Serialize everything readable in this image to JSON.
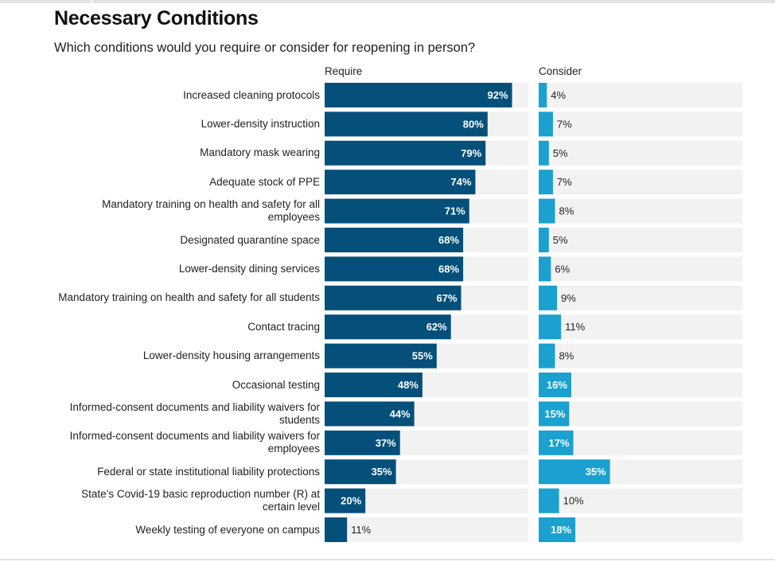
{
  "header": {
    "title": "Necessary Conditions",
    "subtitle": "Which conditions would you require or consider for reopening in person?"
  },
  "colors": {
    "require": "#04507a",
    "consider": "#1aa1cf",
    "track": "#f2f2f2",
    "inside_label": "#ffffff",
    "outside_label": "#222222"
  },
  "chart_data": {
    "type": "bar",
    "orientation": "horizontal",
    "title": "Necessary Conditions",
    "subtitle": "Which conditions would you require or consider for reopening in person?",
    "value_suffix": "%",
    "xlim": [
      0,
      100
    ],
    "grid": false,
    "categories": [
      "Increased cleaning protocols",
      "Lower-density instruction",
      "Mandatory mask wearing",
      "Adequate stock of PPE",
      "Mandatory training on health and safety for all employees",
      "Designated quarantine space",
      "Lower-density dining services",
      "Mandatory training on health and safety for all students",
      "Contact tracing",
      "Lower-density housing arrangements",
      "Occasional testing",
      "Informed-consent documents and liability waivers for students",
      "Informed-consent documents and liability waivers for employees",
      "Federal or state institutional liability protections",
      "State’s Covid-19 basic reproduction number (R) at certain level",
      "Weekly testing of everyone on campus"
    ],
    "series": [
      {
        "name": "Require",
        "values": [
          92,
          80,
          79,
          74,
          71,
          68,
          68,
          67,
          62,
          55,
          48,
          44,
          37,
          35,
          20,
          11
        ]
      },
      {
        "name": "Consider",
        "values": [
          4,
          7,
          5,
          7,
          8,
          5,
          6,
          9,
          11,
          8,
          16,
          15,
          17,
          35,
          10,
          18
        ]
      }
    ]
  }
}
